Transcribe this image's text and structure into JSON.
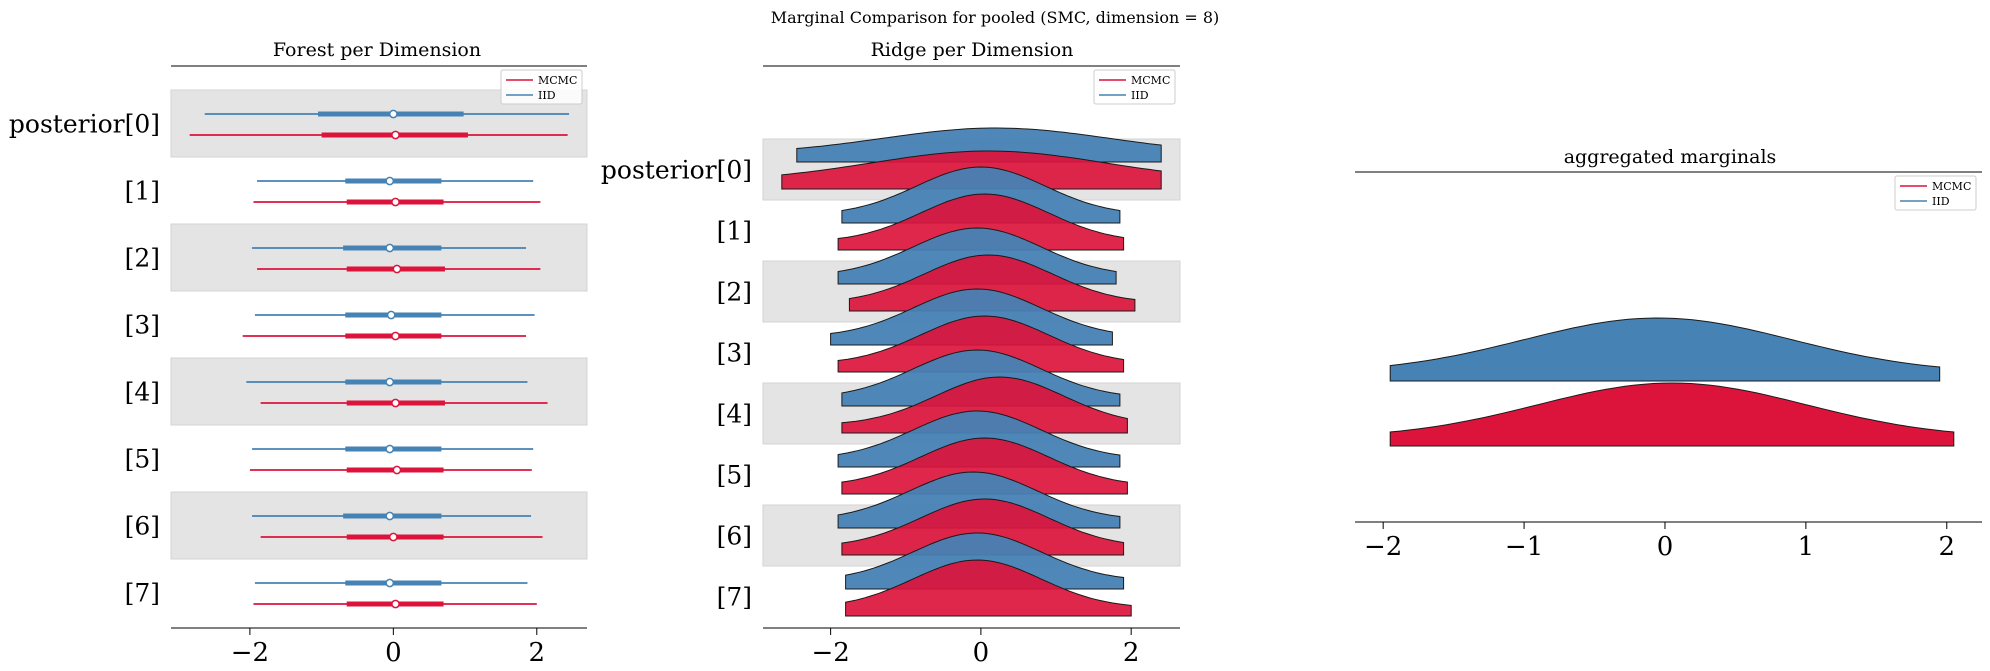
{
  "suptitle": "Marginal Comparison for pooled (SMC, dimension = 8)",
  "colors": {
    "mcmc": "#dc143c",
    "iid": "#4682b4",
    "band": "#e4e4e4",
    "axis": "#000000"
  },
  "chart_data": [
    {
      "type": "forest",
      "title": "Forest per Dimension",
      "row_labels": [
        "posterior[0]",
        "[1]",
        "[2]",
        "[3]",
        "[4]",
        "[5]",
        "[6]",
        "[7]"
      ],
      "xlim": [
        -3.1,
        2.7
      ],
      "xticks": [
        -2,
        0,
        2
      ],
      "xtick_labels": [
        "−2",
        "0",
        "2"
      ],
      "legend": {
        "position": "upper right",
        "entries": [
          "MCMC",
          "IID"
        ]
      },
      "series": [
        {
          "name": "MCMC",
          "rows": [
            {
              "low": -2.84,
              "q1": -1.0,
              "median": 0.03,
              "q3": 1.04,
              "high": 2.43
            },
            {
              "low": -1.95,
              "q1": -0.65,
              "median": 0.03,
              "q3": 0.7,
              "high": 2.05
            },
            {
              "low": -1.9,
              "q1": -0.65,
              "median": 0.05,
              "q3": 0.72,
              "high": 2.05
            },
            {
              "low": -2.1,
              "q1": -0.67,
              "median": 0.03,
              "q3": 0.67,
              "high": 1.85
            },
            {
              "low": -1.85,
              "q1": -0.65,
              "median": 0.03,
              "q3": 0.72,
              "high": 2.15
            },
            {
              "low": -2.0,
              "q1": -0.65,
              "median": 0.05,
              "q3": 0.7,
              "high": 1.93
            },
            {
              "low": -1.85,
              "q1": -0.65,
              "median": 0.0,
              "q3": 0.7,
              "high": 2.08
            },
            {
              "low": -1.95,
              "q1": -0.65,
              "median": 0.03,
              "q3": 0.7,
              "high": 2.0
            }
          ]
        },
        {
          "name": "IID",
          "rows": [
            {
              "low": -2.63,
              "q1": -1.05,
              "median": 0.0,
              "q3": 0.98,
              "high": 2.45
            },
            {
              "low": -1.9,
              "q1": -0.67,
              "median": -0.05,
              "q3": 0.67,
              "high": 1.95
            },
            {
              "low": -1.97,
              "q1": -0.7,
              "median": -0.05,
              "q3": 0.67,
              "high": 1.85
            },
            {
              "low": -1.93,
              "q1": -0.67,
              "median": -0.03,
              "q3": 0.67,
              "high": 1.97
            },
            {
              "low": -2.05,
              "q1": -0.67,
              "median": -0.05,
              "q3": 0.67,
              "high": 1.87
            },
            {
              "low": -1.97,
              "q1": -0.67,
              "median": -0.05,
              "q3": 0.67,
              "high": 1.95
            },
            {
              "low": -1.97,
              "q1": -0.7,
              "median": -0.05,
              "q3": 0.67,
              "high": 1.92
            },
            {
              "low": -1.93,
              "q1": -0.67,
              "median": -0.05,
              "q3": 0.67,
              "high": 1.87
            }
          ]
        }
      ]
    },
    {
      "type": "ridge",
      "title": "Ridge per Dimension",
      "row_labels": [
        "posterior[0]",
        "[1]",
        "[2]",
        "[3]",
        "[4]",
        "[5]",
        "[6]",
        "[7]"
      ],
      "xlim": [
        -2.9,
        2.65
      ],
      "xticks": [
        -2,
        0,
        2
      ],
      "xtick_labels": [
        "−2",
        "0",
        "2"
      ],
      "legend": {
        "position": "upper right",
        "entries": [
          "MCMC",
          "IID"
        ]
      },
      "series": [
        {
          "name": "MCMC",
          "rows": [
            {
              "min": -2.65,
              "max": 2.4,
              "mode": 0.1,
              "sd": 1.55
            },
            {
              "min": -1.9,
              "max": 1.9,
              "mode": 0.05,
              "sd": 0.85
            },
            {
              "min": -1.75,
              "max": 2.05,
              "mode": 0.1,
              "sd": 0.85
            },
            {
              "min": -1.9,
              "max": 1.9,
              "mode": 0.05,
              "sd": 0.85
            },
            {
              "min": -1.85,
              "max": 1.95,
              "mode": 0.25,
              "sd": 0.85
            },
            {
              "min": -1.85,
              "max": 1.95,
              "mode": 0.05,
              "sd": 0.85
            },
            {
              "min": -1.85,
              "max": 1.9,
              "mode": 0.05,
              "sd": 0.85
            },
            {
              "min": -1.8,
              "max": 2.0,
              "mode": -0.05,
              "sd": 0.85
            }
          ]
        },
        {
          "name": "IID",
          "rows": [
            {
              "min": -2.45,
              "max": 2.4,
              "mode": 0.2,
              "sd": 1.5
            },
            {
              "min": -1.85,
              "max": 1.85,
              "mode": 0.0,
              "sd": 0.85
            },
            {
              "min": -1.9,
              "max": 1.8,
              "mode": -0.05,
              "sd": 0.85
            },
            {
              "min": -2.0,
              "max": 1.75,
              "mode": -0.05,
              "sd": 0.85
            },
            {
              "min": -1.85,
              "max": 1.85,
              "mode": -0.05,
              "sd": 0.85
            },
            {
              "min": -1.9,
              "max": 1.85,
              "mode": -0.05,
              "sd": 0.85
            },
            {
              "min": -1.9,
              "max": 1.85,
              "mode": -0.1,
              "sd": 0.85
            },
            {
              "min": -1.8,
              "max": 1.9,
              "mode": -0.05,
              "sd": 0.85
            }
          ]
        }
      ]
    },
    {
      "type": "ridge",
      "title": "aggregated marginals",
      "xlim": [
        -2.2,
        2.25
      ],
      "xticks": [
        -2,
        -1,
        0,
        1,
        2
      ],
      "xtick_labels": [
        "−2",
        "−1",
        "0",
        "1",
        "2"
      ],
      "legend": {
        "position": "upper right",
        "entries": [
          "MCMC",
          "IID"
        ]
      },
      "series": [
        {
          "name": "MCMC",
          "min": -1.95,
          "max": 2.05,
          "mode": 0.05,
          "sd": 0.95
        },
        {
          "name": "IID",
          "min": -1.95,
          "max": 1.95,
          "mode": -0.05,
          "sd": 0.95
        }
      ]
    }
  ]
}
